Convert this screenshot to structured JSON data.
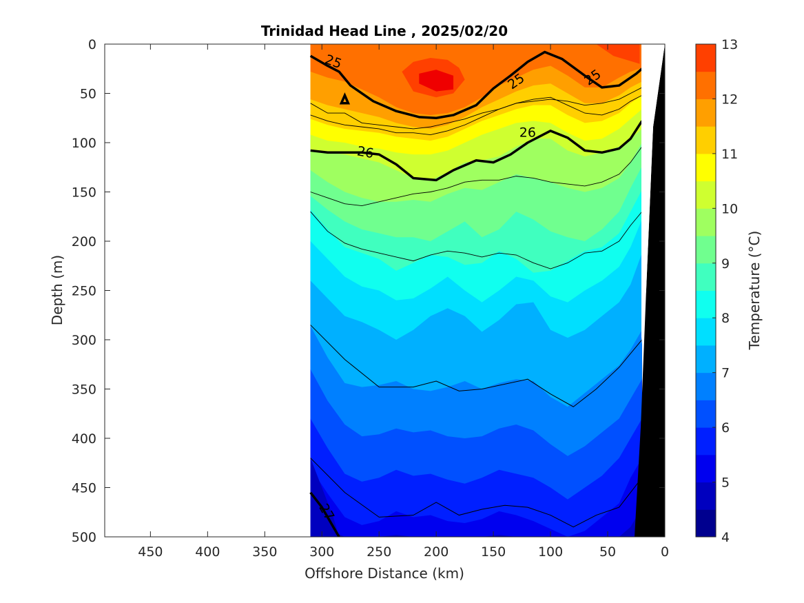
{
  "chart_data": {
    "type": "contour",
    "title": "Trinidad Head Line , 2025/02/20",
    "xlabel": "Offshore Distance (km)",
    "ylabel": "Depth (m)",
    "xlim": [
      490,
      0
    ],
    "ylim": [
      0,
      500
    ],
    "x_reversed": true,
    "y_reversed": true,
    "x_ticks": [
      "450",
      "400",
      "350",
      "300",
      "250",
      "200",
      "150",
      "100",
      "50",
      "0"
    ],
    "y_ticks": [
      "0",
      "50",
      "100",
      "150",
      "200",
      "250",
      "300",
      "350",
      "400",
      "450",
      "500"
    ],
    "data_extent_km": [
      310,
      20
    ],
    "colorbar": {
      "label": "Temperature (°C)",
      "min": 4,
      "max": 13,
      "step": 0.5,
      "tick_labels": [
        "4",
        "5",
        "6",
        "7",
        "8",
        "9",
        "10",
        "11",
        "12",
        "13"
      ],
      "colors": [
        "#00008f",
        "#0000bf",
        "#0000ef",
        "#001fff",
        "#0050ff",
        "#0080ff",
        "#00b0ff",
        "#00dfff",
        "#10ffef",
        "#40ffbf",
        "#70ff8f",
        "#9fff60",
        "#cfff30",
        "#ffff00",
        "#ffcf00",
        "#ff9f00",
        "#ff7000",
        "#ff4000"
      ]
    },
    "isotherms_degC": [
      {
        "x": [
          310,
          280,
          250,
          220,
          200,
          180,
          160,
          140,
          120,
          100,
          80,
          60,
          40,
          20
        ],
        "y": [
          285,
          320,
          348,
          348,
          342,
          352,
          350,
          345,
          340,
          355,
          368,
          350,
          328,
          300
        ],
        "value": 6
      },
      {
        "x": [
          310,
          280,
          250,
          220,
          200,
          180,
          160,
          140,
          120,
          100,
          80,
          60,
          40,
          20
        ],
        "y": [
          420,
          455,
          480,
          478,
          465,
          478,
          472,
          468,
          470,
          478,
          490,
          478,
          470,
          440
        ],
        "value": 5.5
      }
    ],
    "density_contours_sigma": [
      {
        "label": "25",
        "x": [
          310,
          295,
          285,
          275,
          255,
          235,
          215,
          200,
          185,
          165,
          150,
          135,
          120,
          105,
          90,
          70,
          55,
          40,
          25,
          20
        ],
        "y": [
          12,
          22,
          28,
          42,
          58,
          68,
          74,
          75,
          72,
          62,
          45,
          32,
          18,
          8,
          15,
          32,
          44,
          42,
          30,
          25
        ]
      },
      {
        "label": "26",
        "x": [
          310,
          295,
          280,
          265,
          250,
          235,
          220,
          200,
          185,
          165,
          150,
          135,
          120,
          100,
          85,
          70,
          55,
          40,
          30,
          20
        ],
        "y": [
          108,
          110,
          110,
          110,
          112,
          122,
          136,
          138,
          128,
          118,
          120,
          112,
          100,
          88,
          95,
          108,
          110,
          106,
          96,
          78
        ]
      },
      {
        "label": "27",
        "x": [
          310,
          300,
          290,
          285
        ],
        "y": [
          455,
          470,
          490,
          500
        ]
      }
    ]
  }
}
